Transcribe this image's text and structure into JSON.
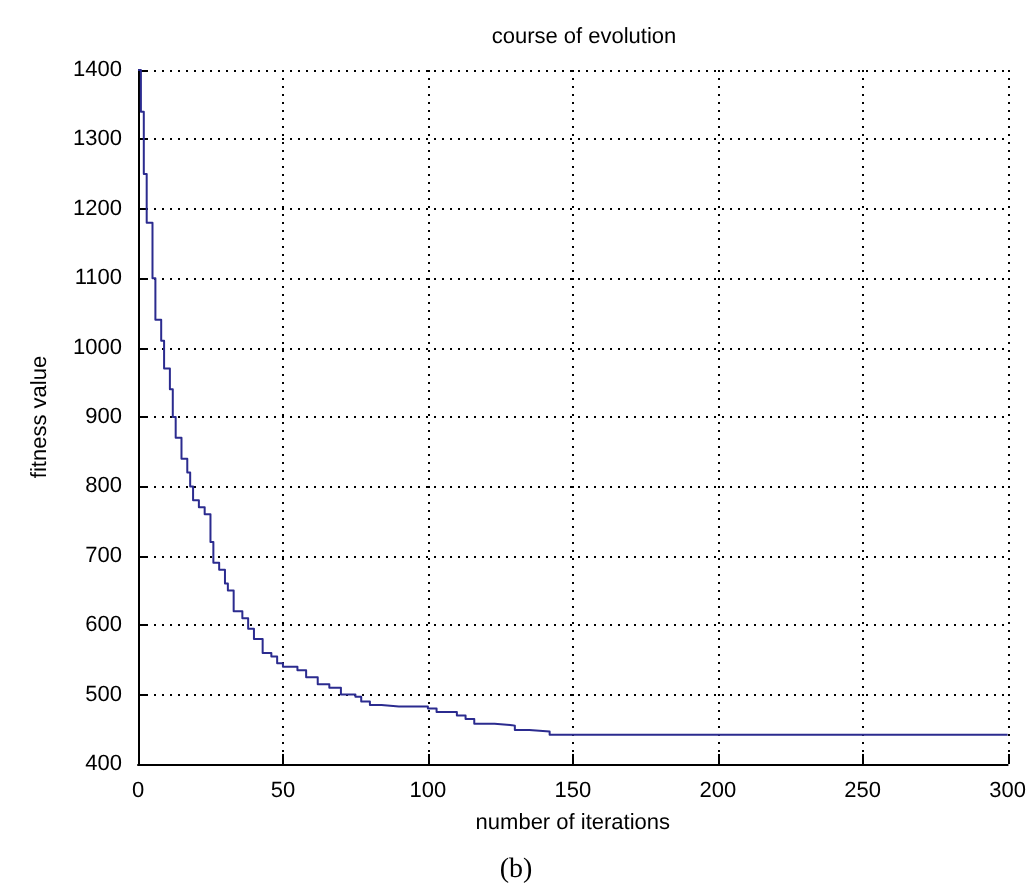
{
  "chart_data": {
    "type": "step",
    "title": "course of evolution",
    "xlabel": "number of iterations",
    "ylabel": "fitness value",
    "annotations": [
      "(b)"
    ],
    "series": [
      {
        "color": "#2b2b8f",
        "x": [
          0,
          1,
          2,
          3,
          5,
          6,
          8,
          9,
          11,
          12,
          13,
          15,
          17,
          18,
          19,
          21,
          23,
          25,
          26,
          28,
          30,
          31,
          33,
          36,
          38,
          40,
          43,
          46,
          48,
          50,
          55,
          58,
          62,
          66,
          70,
          75,
          77,
          80,
          84,
          90,
          100,
          103,
          110,
          113,
          116,
          123,
          129,
          130,
          135,
          142,
          300
        ],
        "values": [
          1400,
          1340,
          1250,
          1180,
          1100,
          1040,
          1010,
          970,
          940,
          900,
          870,
          840,
          820,
          800,
          780,
          770,
          760,
          720,
          690,
          680,
          660,
          650,
          620,
          610,
          595,
          580,
          560,
          555,
          545,
          540,
          535,
          525,
          515,
          510,
          500,
          497,
          490,
          485,
          483,
          483,
          480,
          475,
          470,
          465,
          458,
          456,
          455,
          449,
          447,
          442,
          442
        ]
      }
    ],
    "xlim": [
      0,
      300
    ],
    "xticks": [
      0,
      50,
      100,
      150,
      200,
      250,
      300
    ],
    "ylim": [
      400,
      1400
    ],
    "yticks": [
      400,
      500,
      600,
      700,
      800,
      900,
      1000,
      1100,
      1200,
      1300,
      1400
    ],
    "grid": true,
    "line_style": "solid",
    "marker": "none"
  }
}
